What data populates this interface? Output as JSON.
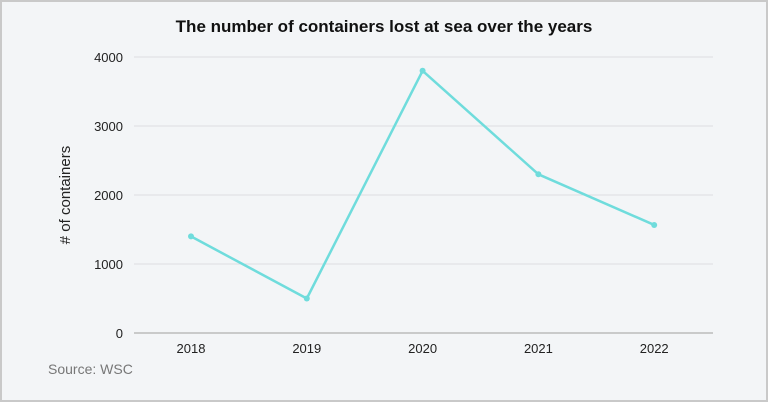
{
  "chart_data": {
    "type": "line",
    "title": "The number of containers lost at sea over the years",
    "xlabel": "",
    "ylabel": "# of containers",
    "categories": [
      "2018",
      "2019",
      "2020",
      "2021",
      "2022"
    ],
    "series": [
      {
        "name": "Containers lost",
        "values": [
          1400,
          500,
          3800,
          2300,
          1566
        ],
        "color": "#6fdcdc"
      }
    ],
    "ylim": [
      0,
      4000
    ],
    "yticks": [
      "0",
      "1000",
      "2000",
      "3000",
      "4000"
    ],
    "grid": true,
    "legend": "none"
  },
  "source": "Source: WSC"
}
